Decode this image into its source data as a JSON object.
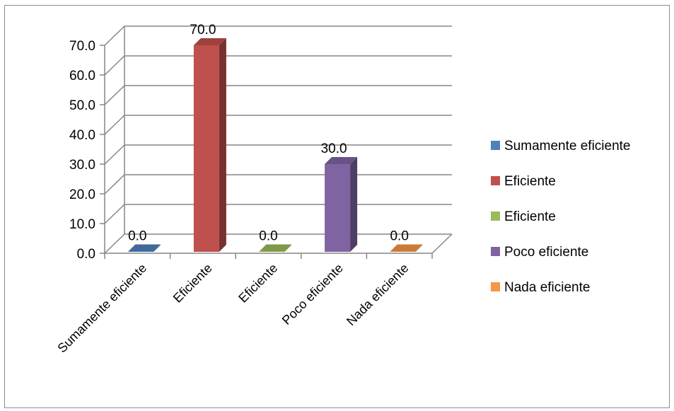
{
  "chart_data": {
    "type": "bar",
    "style": "3d-column",
    "categories": [
      "Sumamente eficiente",
      "Eficiente",
      "Eficiente",
      "Poco eficiente",
      "Nada eficiente"
    ],
    "values": [
      0.0,
      70.0,
      0.0,
      30.0,
      0.0
    ],
    "data_labels": [
      "0.0",
      "70.0",
      "0.0",
      "30.0",
      "0.0"
    ],
    "colors": [
      "#4f81bd",
      "#c0504d",
      "#9bbb59",
      "#8064a2",
      "#f79646"
    ],
    "ylim": [
      0,
      70
    ],
    "yticks": [
      "0.0",
      "10.0",
      "20.0",
      "30.0",
      "40.0",
      "50.0",
      "60.0",
      "70.0"
    ],
    "grid": true,
    "legend_position": "right",
    "legend": [
      "Sumamente eficiente",
      "Eficiente",
      "Eficiente",
      "Poco eficiente",
      "Nada eficiente"
    ]
  }
}
